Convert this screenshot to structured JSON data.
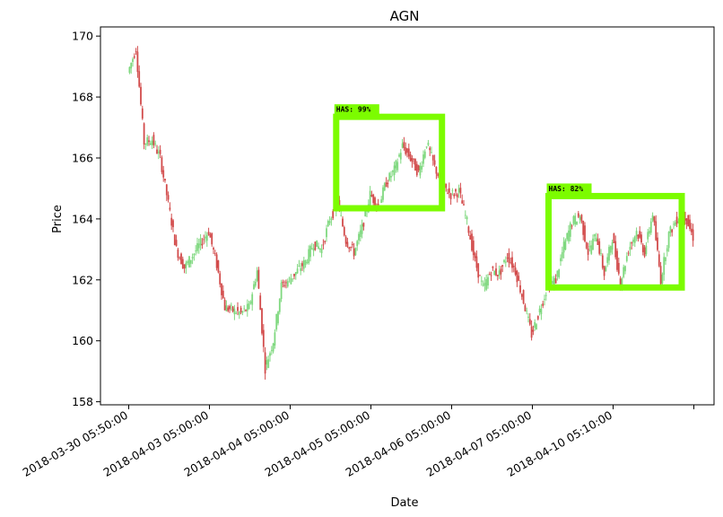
{
  "chart_data": {
    "type": "candlestick",
    "title": "AGN",
    "xlabel": "Date",
    "ylabel": "Price",
    "ylim": [
      157.9,
      170.3
    ],
    "y_ticks": [
      158,
      160,
      162,
      164,
      166,
      168,
      170
    ],
    "x_range": [
      -3.5,
      72.5
    ],
    "x_ticks": [
      {
        "index": 0,
        "label": "2018-03-30 05:50:00"
      },
      {
        "index": 10,
        "label": "2018-04-03 05:00:00"
      },
      {
        "index": 20,
        "label": "2018-04-04 05:00:00"
      },
      {
        "index": 30,
        "label": "2018-04-05 05:00:00"
      },
      {
        "index": 40,
        "label": "2018-04-06 05:00:00"
      },
      {
        "index": 50,
        "label": "2018-04-07 05:00:00"
      },
      {
        "index": 60,
        "label": "2018-04-10 05:10:00"
      },
      {
        "index": 70,
        "label": ""
      }
    ],
    "up_color": "#7fd87f",
    "down_color": "#d24b4b",
    "close_series": [
      168.8,
      169.6,
      166.5,
      166.6,
      166.0,
      164.5,
      163.0,
      162.4,
      162.8,
      163.2,
      163.6,
      162.5,
      161.1,
      161.0,
      160.9,
      161.1,
      162.3,
      159.1,
      160.0,
      161.8,
      162.0,
      162.3,
      162.6,
      163.2,
      163.0,
      164.0,
      164.5,
      163.3,
      162.9,
      163.7,
      164.8,
      164.4,
      165.2,
      165.6,
      166.4,
      166.0,
      165.5,
      166.5,
      165.7,
      165.1,
      164.8,
      164.9,
      163.9,
      162.6,
      161.7,
      162.3,
      162.2,
      162.8,
      162.3,
      161.3,
      160.2,
      161.0,
      161.8,
      162.0,
      163.1,
      163.9,
      164.1,
      162.9,
      163.5,
      162.2,
      163.4,
      161.9,
      163.0,
      163.6,
      162.9,
      164.2,
      162.0,
      163.5,
      164.0,
      164.1,
      163.4
    ],
    "annotations": [
      {
        "label": "HAS: 99%",
        "x_start": 25.7,
        "x_end": 38.8,
        "y_low": 164.35,
        "y_high": 167.35
      },
      {
        "label": "HAS: 82%",
        "x_start": 52.0,
        "x_end": 68.5,
        "y_low": 161.75,
        "y_high": 164.75
      }
    ],
    "annotation_color": "#7cfc00"
  }
}
